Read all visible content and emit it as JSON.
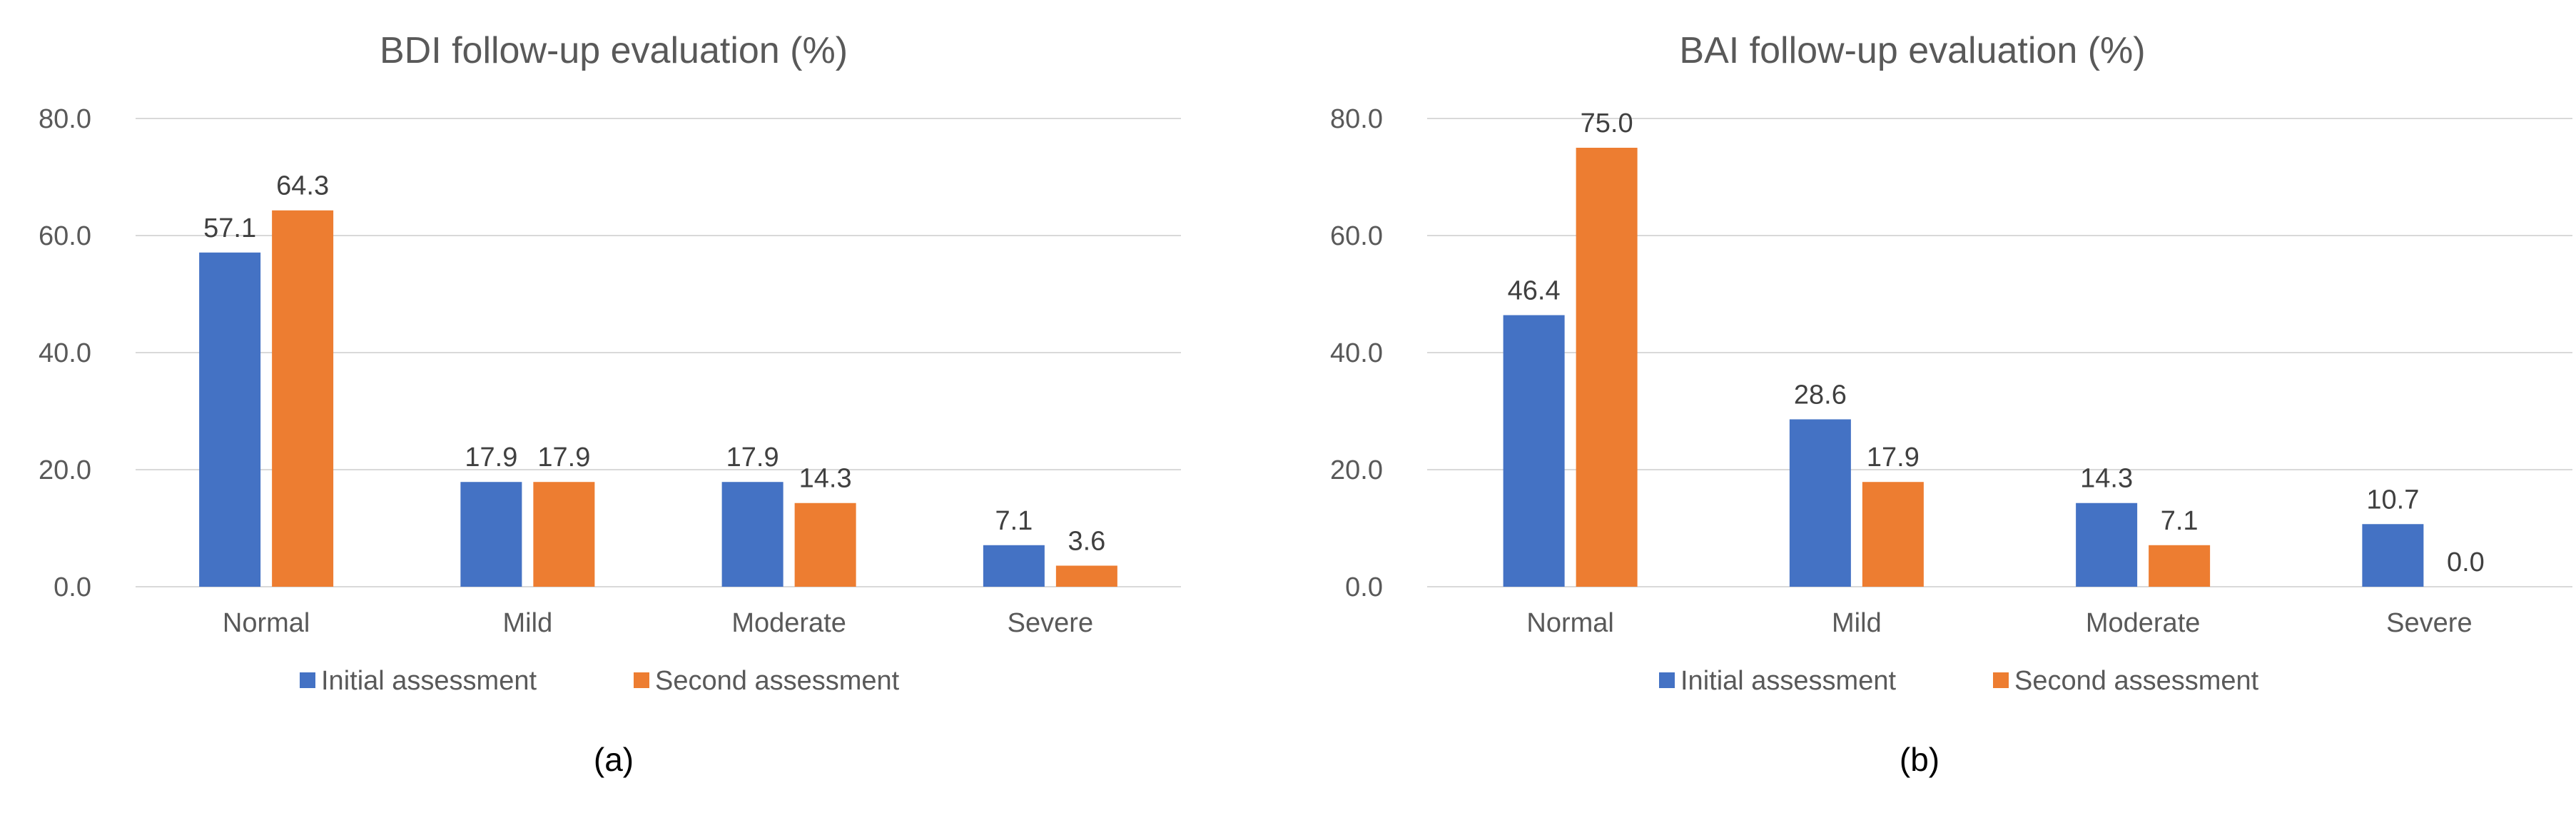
{
  "series_colors": [
    "#4472c4",
    "#ed7d31"
  ],
  "chart_data": [
    {
      "type": "bar",
      "title": "BDI follow-up evaluation (%)",
      "panel_label": "(a)",
      "categories": [
        "Normal",
        "Mild",
        "Moderate",
        "Severe"
      ],
      "series": [
        {
          "name": "Initial assessment",
          "values": [
            57.1,
            17.9,
            17.9,
            7.1
          ]
        },
        {
          "name": "Second assessment",
          "values": [
            64.3,
            17.9,
            14.3,
            3.6
          ]
        }
      ],
      "ylim": [
        0,
        80
      ],
      "yticks": [
        "0.0",
        "20.0",
        "40.0",
        "60.0",
        "80.0"
      ],
      "xlabel": "",
      "ylabel": "",
      "grid": true,
      "legend_position": "bottom"
    },
    {
      "type": "bar",
      "title": "BAI follow-up evaluation (%)",
      "panel_label": "(b)",
      "categories": [
        "Normal",
        "Mild",
        "Moderate",
        "Severe"
      ],
      "series": [
        {
          "name": "Initial assessment",
          "values": [
            46.4,
            28.6,
            14.3,
            10.7
          ]
        },
        {
          "name": "Second assessment",
          "values": [
            75.0,
            17.9,
            7.1,
            0.0
          ]
        }
      ],
      "ylim": [
        0,
        80
      ],
      "yticks": [
        "0.0",
        "20.0",
        "40.0",
        "60.0",
        "80.0"
      ],
      "xlabel": "",
      "ylabel": "",
      "grid": true,
      "legend_position": "bottom"
    }
  ]
}
